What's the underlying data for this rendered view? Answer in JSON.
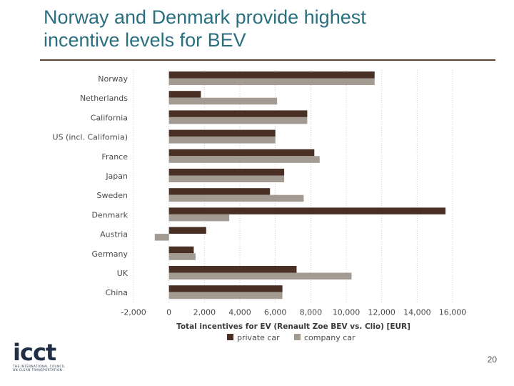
{
  "slide": {
    "title_line1": "Norway and Denmark provide highest",
    "title_line2": "incentive levels for BEV",
    "page_number": "20",
    "logo_text": "icct",
    "logo_subtext_line1": "THE INTERNATIONAL COUNCIL",
    "logo_subtext_line2": "ON CLEAN TRANSPORTATION"
  },
  "colors": {
    "title": "#2a6f7f",
    "rule": "#5c4532",
    "private_car": "#4a2f24",
    "company_car": "#a39a92"
  },
  "chart_data": {
    "type": "bar",
    "orientation": "horizontal",
    "categories": [
      "Norway",
      "Netherlands",
      "California",
      "US (incl. California)",
      "France",
      "Japan",
      "Sweden",
      "Denmark",
      "Austria",
      "Germany",
      "UK",
      "China"
    ],
    "series": [
      {
        "name": "private car",
        "values": [
          11600,
          1800,
          7800,
          6000,
          8200,
          6500,
          5700,
          15600,
          2100,
          1400,
          7200,
          6400
        ]
      },
      {
        "name": "company car",
        "values": [
          11600,
          6100,
          7800,
          6000,
          8500,
          6500,
          7600,
          3400,
          -800,
          1500,
          10300,
          6400
        ]
      }
    ],
    "xlabel": "Total incentives for EV (Renault Zoe BEV vs. Clio) [EUR]",
    "xlim": [
      -2000,
      16000
    ],
    "xticks": [
      -2000,
      0,
      2000,
      4000,
      6000,
      8000,
      10000,
      12000,
      14000,
      16000
    ],
    "xtick_labels": [
      "-2,000",
      "0",
      "2,000",
      "4,000",
      "6,000",
      "8,000",
      "10,000",
      "12,000",
      "14,000",
      "16,000"
    ],
    "grid": "vertical dotted",
    "legend": "bottom"
  }
}
